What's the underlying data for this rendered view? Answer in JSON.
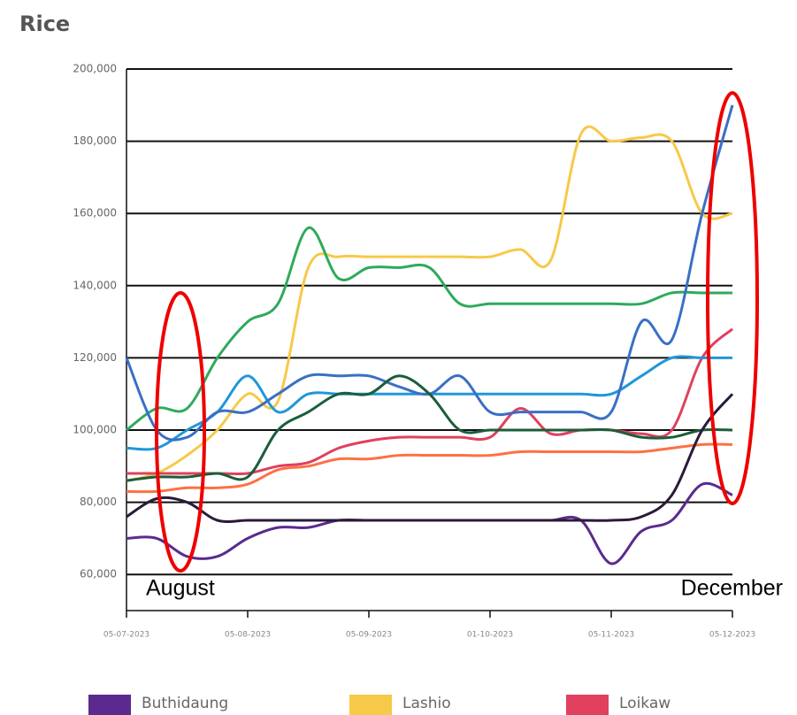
{
  "chart_data": {
    "type": "line",
    "title": "Rice",
    "categories": [
      "05-07-2023",
      null,
      null,
      null,
      "05-08-2023",
      null,
      null,
      null,
      "05-09-2023",
      null,
      null,
      null,
      "01-10-2023",
      null,
      null,
      null,
      "05-11-2023",
      null,
      null,
      null,
      "05-12-2023"
    ],
    "ylim": [
      50000,
      200000
    ],
    "yticks": [
      {
        "value": 60000,
        "label": "60,000"
      },
      {
        "value": 80000,
        "label": "80,000"
      },
      {
        "value": 100000,
        "label": "100,000"
      },
      {
        "value": 120000,
        "label": "120,000"
      },
      {
        "value": 140000,
        "label": "140,000"
      },
      {
        "value": 160000,
        "label": "160,000"
      },
      {
        "value": 180000,
        "label": "180,000"
      },
      {
        "value": 200000,
        "label": "200,000"
      }
    ],
    "grid": true,
    "annotations": [
      "August",
      "December"
    ],
    "series": [
      {
        "name": "Buthidaung",
        "color": "#5b2a8e",
        "values": [
          70000,
          70000,
          65000,
          65000,
          70000,
          73000,
          73000,
          75000,
          75000,
          75000,
          75000,
          75000,
          75000,
          75000,
          75000,
          75000,
          63000,
          72000,
          75000,
          85000,
          82000
        ]
      },
      {
        "name": "Lashio",
        "color": "#f7c948",
        "values": [
          86000,
          88000,
          93000,
          100000,
          110000,
          108000,
          145000,
          148000,
          148000,
          148000,
          148000,
          148000,
          148000,
          150000,
          147000,
          182000,
          180000,
          181000,
          180000,
          160000,
          160000
        ]
      },
      {
        "name": "Loikaw",
        "color": "#e0405e",
        "values": [
          88000,
          88000,
          88000,
          88000,
          88000,
          90000,
          91000,
          95000,
          97000,
          98000,
          98000,
          98000,
          98000,
          106000,
          99000,
          100000,
          100000,
          99000,
          100000,
          120000,
          128000
        ]
      },
      {
        "color": "#2eaa5c",
        "values": [
          100000,
          106000,
          106000,
          120000,
          130000,
          135000,
          156000,
          142000,
          145000,
          145000,
          145000,
          135000,
          135000,
          135000,
          135000,
          135000,
          135000,
          135000,
          138000,
          138000,
          138000
        ]
      },
      {
        "color": "#2196d9",
        "values": [
          95000,
          95000,
          100000,
          105000,
          115000,
          105000,
          110000,
          110000,
          110000,
          110000,
          110000,
          110000,
          110000,
          110000,
          110000,
          110000,
          110000,
          115000,
          120000,
          120000,
          120000
        ]
      },
      {
        "color": "#3a6fc4",
        "values": [
          120000,
          100000,
          98000,
          105000,
          105000,
          110000,
          115000,
          115000,
          115000,
          112000,
          110000,
          115000,
          105000,
          105000,
          105000,
          105000,
          105000,
          130000,
          125000,
          160000,
          190000
        ]
      },
      {
        "color": "#1b5e3a",
        "values": [
          86000,
          87000,
          87000,
          88000,
          87000,
          100000,
          105000,
          110000,
          110000,
          115000,
          110000,
          100000,
          100000,
          100000,
          100000,
          100000,
          100000,
          98000,
          98000,
          100000,
          100000
        ]
      },
      {
        "color": "#ff7043",
        "values": [
          83000,
          83000,
          84000,
          84000,
          85000,
          89000,
          90000,
          92000,
          92000,
          93000,
          93000,
          93000,
          93000,
          94000,
          94000,
          94000,
          94000,
          94000,
          95000,
          96000,
          96000
        ]
      },
      {
        "color": "#2a1a3a",
        "values": [
          76000,
          81000,
          80000,
          75000,
          75000,
          75000,
          75000,
          75000,
          75000,
          75000,
          75000,
          75000,
          75000,
          75000,
          75000,
          75000,
          75000,
          76000,
          82000,
          100000,
          110000
        ]
      }
    ]
  }
}
